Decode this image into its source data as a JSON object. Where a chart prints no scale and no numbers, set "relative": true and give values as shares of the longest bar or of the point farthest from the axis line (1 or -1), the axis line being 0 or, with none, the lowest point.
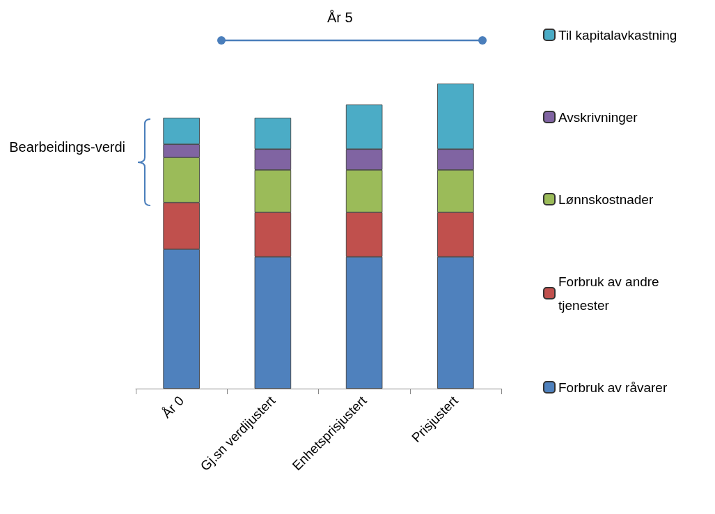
{
  "chart_data": {
    "type": "bar",
    "stacked": true,
    "relative": true,
    "legend": "right",
    "categories": [
      "År 0",
      "Gj.sn verdijustert",
      "Enhetsprisjustert",
      "Prisjustert"
    ],
    "series": [
      {
        "name": "Forbruk av råvarer",
        "color": "#4f81bd",
        "values": [
          0.457,
          0.432,
          0.432,
          0.432
        ]
      },
      {
        "name": "Forbruk av andre tjenester",
        "color": "#c0504d",
        "values": [
          0.153,
          0.146,
          0.146,
          0.146
        ]
      },
      {
        "name": "Lønnskostnader",
        "color": "#9bbb59",
        "values": [
          0.148,
          0.139,
          0.139,
          0.139
        ]
      },
      {
        "name": "Avskrivninger",
        "color": "#8064a2",
        "values": [
          0.043,
          0.068,
          0.068,
          0.068
        ]
      },
      {
        "name": "Til kapitalavkastning",
        "color": "#4bacc6",
        "values": [
          0.087,
          0.103,
          0.146,
          0.215
        ]
      }
    ],
    "annotations": [
      "År 5",
      "Bearbeidings-verdi"
    ]
  }
}
